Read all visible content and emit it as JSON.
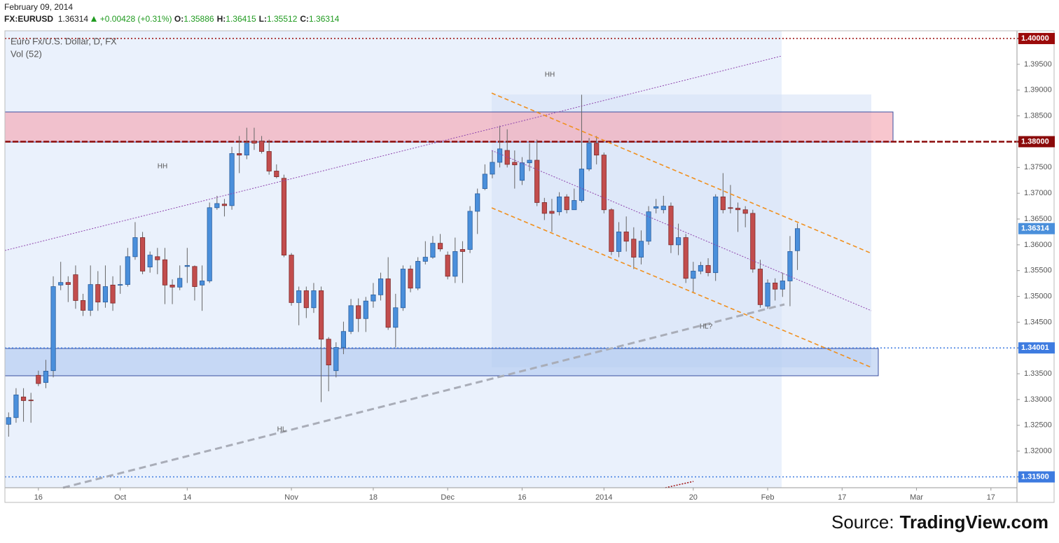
{
  "chart_data": {
    "type": "candlestick",
    "header": {
      "date": "February 09, 2014",
      "symbol": "FX:EURUSD",
      "last": "1.36314",
      "change": "+0.00428 (+0.31%)",
      "fields": [
        {
          "label": "O:",
          "value": "1.35886"
        },
        {
          "label": "H:",
          "value": "1.36415"
        },
        {
          "label": "L:",
          "value": "1.35512"
        },
        {
          "label": "C:",
          "value": "1.36314"
        }
      ]
    },
    "title": "Euro Fx/U.S. Dollar, D, FX",
    "subtitle": "Vol (52)",
    "annotations": [
      "HH",
      "HH",
      "HL",
      "HL?"
    ],
    "source_prefix": "Source:",
    "source": "TradingView.com",
    "up_color": "#4a8fdb",
    "down_color": "#c24d4d",
    "ylim": [
      1.3129,
      1.4015
    ],
    "yticks": [
      {
        "value": 1.32,
        "label": "1.32000"
      },
      {
        "value": 1.325,
        "label": "1.32500"
      },
      {
        "value": 1.33,
        "label": "1.33000"
      },
      {
        "value": 1.335,
        "label": "1.33500"
      },
      {
        "value": 1.345,
        "label": "1.34500"
      },
      {
        "value": 1.35,
        "label": "1.35000"
      },
      {
        "value": 1.355,
        "label": "1.35500"
      },
      {
        "value": 1.36,
        "label": "1.36000"
      },
      {
        "value": 1.365,
        "label": "1.36500"
      },
      {
        "value": 1.37,
        "label": "1.37000"
      },
      {
        "value": 1.375,
        "label": "1.37500"
      },
      {
        "value": 1.385,
        "label": "1.38500"
      },
      {
        "value": 1.39,
        "label": "1.39000"
      },
      {
        "value": 1.395,
        "label": "1.39500"
      }
    ],
    "levels": [
      {
        "value": 1.4,
        "label": "1.40000",
        "color": "#9b0a0a",
        "style": "dotted"
      },
      {
        "value": 1.38,
        "label": "1.38000",
        "color": "#8b0a0a",
        "style": "dashed"
      },
      {
        "value": 1.34001,
        "label": "1.34001",
        "color": "#3d7be0",
        "style": "dotted"
      },
      {
        "value": 1.315,
        "label": "1.31500",
        "color": "#3d7be0",
        "style": "dotted"
      }
    ],
    "price_label": {
      "value": 1.36314,
      "label": "1.36314",
      "color": "#4a8fdb"
    },
    "categories": [
      null,
      null,
      null,
      null,
      "16",
      null,
      null,
      null,
      null,
      null,
      null,
      null,
      null,
      null,
      null,
      "Oct",
      null,
      null,
      null,
      null,
      null,
      null,
      null,
      null,
      "14",
      null,
      null,
      null,
      null,
      null,
      null,
      null,
      null,
      null,
      null,
      null,
      null,
      null,
      "Nov",
      null,
      null,
      null,
      null,
      null,
      null,
      null,
      null,
      null,
      null,
      "18",
      null,
      null,
      null,
      null,
      null,
      null,
      null,
      null,
      null,
      "Dec",
      null,
      null,
      null,
      null,
      null,
      null,
      null,
      null,
      null,
      "16",
      null,
      null,
      null,
      null,
      null,
      null,
      null,
      null,
      null,
      null,
      "2014",
      null,
      null,
      null,
      null,
      null,
      null,
      null,
      null,
      null,
      null,
      null,
      "20",
      null,
      null,
      null,
      null,
      null,
      null,
      null,
      null,
      null,
      "Feb",
      null,
      null,
      null,
      null,
      null,
      null,
      null,
      null,
      null,
      "17",
      null,
      null,
      null,
      null,
      null,
      null,
      null,
      null,
      null,
      "Mar",
      null,
      null,
      null,
      null,
      null,
      null,
      null,
      null,
      null,
      "17",
      null,
      null,
      null
    ],
    "open": [
      1.3252,
      1.3265,
      1.3305,
      1.3299,
      1.3347,
      1.3333,
      1.3356,
      1.3522,
      1.3527,
      1.3542,
      1.3492,
      1.3473,
      1.3523,
      1.3489,
      1.3522,
      1.3522,
      1.3523,
      1.3577,
      1.3614,
      1.3557,
      1.3577,
      1.3571,
      1.3522,
      1.3518,
      1.3558,
      1.3558,
      1.3522,
      1.353,
      1.3672,
      1.3679,
      1.3676,
      1.3777,
      1.3774,
      1.3801,
      1.3801,
      1.3781,
      1.3743,
      1.3729,
      1.358,
      1.3488,
      1.3511,
      1.3478,
      1.3511,
      1.3417,
      1.3356,
      1.3401,
      1.3432,
      1.3482,
      1.3457,
      1.3491,
      1.3503,
      1.3534,
      1.344,
      1.3478,
      1.3553,
      1.3516,
      1.3568,
      1.3576,
      1.3603,
      1.358,
      1.3539,
      1.3591,
      1.3591,
      1.3665,
      1.3709,
      1.3737,
      1.376,
      1.3783,
      1.376,
      1.3725,
      1.3759,
      1.3764,
      1.3682,
      1.3665,
      1.3664,
      1.3693,
      1.3668,
      1.3686,
      1.3747,
      1.3797,
      1.3774,
      1.3668,
      1.3587,
      1.3625,
      1.3611,
      1.3576,
      1.3607,
      1.3671,
      1.3668,
      1.3675,
      1.36,
      1.3614,
      1.3535,
      1.3549,
      1.356,
      1.3546,
      1.3693,
      1.3672,
      1.3671,
      1.3668,
      1.3661,
      1.3553,
      1.3481,
      1.3526,
      1.3514,
      1.353,
      1.35886,
      null,
      null,
      null,
      null,
      null,
      null,
      null,
      null,
      null,
      null,
      null,
      null,
      null,
      null,
      null,
      null,
      null,
      null,
      null,
      null,
      null,
      null,
      null,
      null,
      null,
      null,
      null,
      null,
      null
    ],
    "high": [
      1.3275,
      1.3322,
      1.3322,
      1.3313,
      1.3356,
      1.3377,
      1.3539,
      1.3567,
      1.3539,
      1.356,
      1.3505,
      1.356,
      1.3549,
      1.356,
      1.3539,
      1.356,
      1.3594,
      1.3644,
      1.3625,
      1.3587,
      1.3594,
      1.3594,
      1.3533,
      1.356,
      1.3594,
      1.356,
      1.356,
      1.3682,
      1.3695,
      1.3689,
      1.379,
      1.3811,
      1.3827,
      1.3827,
      1.3811,
      1.3804,
      1.3756,
      1.3736,
      1.3584,
      1.3519,
      1.3519,
      1.3526,
      1.3519,
      1.3421,
      1.3411,
      1.3451,
      1.3495,
      1.3496,
      1.3499,
      1.3526,
      1.3546,
      1.3576,
      1.3505,
      1.356,
      1.356,
      1.3576,
      1.3607,
      1.3617,
      1.3621,
      1.3587,
      1.3614,
      1.3607,
      1.3675,
      1.3709,
      1.3756,
      1.3783,
      1.3831,
      1.3824,
      1.3783,
      1.377,
      1.3797,
      1.3804,
      1.3691,
      1.3689,
      1.3702,
      1.3698,
      1.3709,
      1.3891,
      1.3807,
      1.3811,
      1.3779,
      1.3671,
      1.3644,
      1.3655,
      1.3634,
      1.3628,
      1.3675,
      1.3689,
      1.3695,
      1.3682,
      1.3641,
      1.3621,
      1.3567,
      1.3567,
      1.3574,
      1.3698,
      1.3739,
      1.3716,
      1.3682,
      1.3675,
      1.3668,
      1.3571,
      1.3533,
      1.3535,
      1.3546,
      1.3617,
      1.36415,
      null,
      null,
      null,
      null,
      null,
      null,
      null,
      null,
      null,
      null,
      null,
      null,
      null,
      null,
      null,
      null,
      null,
      null,
      null,
      null,
      null,
      null,
      null,
      null,
      null,
      null,
      null,
      null,
      null
    ],
    "low": [
      1.3228,
      1.3255,
      1.3257,
      1.3255,
      1.3326,
      1.3322,
      1.3343,
      1.3512,
      1.3489,
      1.3476,
      1.3462,
      1.3462,
      1.3472,
      1.3478,
      1.3472,
      1.3505,
      1.3519,
      1.3571,
      1.3543,
      1.3546,
      1.3543,
      1.3485,
      1.3485,
      1.3512,
      1.3526,
      1.3492,
      1.3472,
      1.3526,
      1.3668,
      1.3655,
      1.3668,
      1.3739,
      1.3766,
      1.3784,
      1.3777,
      1.3736,
      1.3729,
      1.3576,
      1.3482,
      1.3444,
      1.3458,
      1.3468,
      1.3295,
      1.3316,
      1.3343,
      1.3388,
      1.3427,
      1.3431,
      1.3431,
      1.3478,
      1.3492,
      1.3435,
      1.3401,
      1.3472,
      1.3508,
      1.3512,
      1.3562,
      1.3573,
      1.3587,
      1.3533,
      1.3526,
      1.3526,
      1.3584,
      1.3621,
      1.3706,
      1.3729,
      1.375,
      1.375,
      1.3709,
      1.3716,
      1.3743,
      1.3675,
      1.3648,
      1.3625,
      1.3657,
      1.3661,
      1.3668,
      1.3682,
      1.3743,
      1.3756,
      1.3661,
      1.358,
      1.3576,
      1.3587,
      1.3553,
      1.3562,
      1.36,
      1.3661,
      1.3661,
      1.3584,
      1.358,
      1.3526,
      1.3508,
      1.3543,
      1.3539,
      1.353,
      1.3661,
      1.3661,
      1.3625,
      1.3634,
      1.3546,
      1.3478,
      1.3476,
      1.3492,
      1.3499,
      1.3481,
      1.35512,
      null,
      null,
      null,
      null,
      null,
      null,
      null,
      null,
      null,
      null,
      null,
      null,
      null,
      null,
      null,
      null,
      null,
      null,
      null,
      null,
      null,
      null,
      null,
      null,
      null,
      null,
      null,
      null,
      null
    ],
    "close": [
      1.3265,
      1.3309,
      1.3298,
      1.3298,
      1.3331,
      1.3355,
      1.3519,
      1.3527,
      1.3523,
      1.3492,
      1.3473,
      1.3523,
      1.3489,
      1.3519,
      1.3487,
      1.3523,
      1.3577,
      1.3614,
      1.3549,
      1.358,
      1.3571,
      1.3522,
      1.3518,
      1.3535,
      1.356,
      1.3519,
      1.353,
      1.3672,
      1.368,
      1.3676,
      1.3777,
      1.3774,
      1.3797,
      1.3797,
      1.3781,
      1.3743,
      1.3732,
      1.358,
      1.3488,
      1.3511,
      1.3478,
      1.3511,
      1.3417,
      1.3367,
      1.3401,
      1.3432,
      1.3482,
      1.3457,
      1.3491,
      1.3503,
      1.3534,
      1.344,
      1.3478,
      1.3553,
      1.3516,
      1.3568,
      1.3576,
      1.3603,
      1.3592,
      1.3539,
      1.3587,
      1.3587,
      1.3665,
      1.3699,
      1.3737,
      1.376,
      1.3786,
      1.3756,
      1.3755,
      1.3759,
      1.3764,
      1.3682,
      1.3661,
      1.3661,
      1.3693,
      1.3668,
      1.3686,
      1.3747,
      1.3797,
      1.3774,
      1.3668,
      1.3587,
      1.3625,
      1.3607,
      1.3576,
      1.3607,
      1.3664,
      1.3674,
      1.3675,
      1.36,
      1.3614,
      1.3535,
      1.3549,
      1.356,
      1.3546,
      1.3693,
      1.3668,
      1.3671,
      1.3668,
      1.3661,
      1.3553,
      1.3484,
      1.3526,
      1.3514,
      1.353,
      1.3587,
      1.36314,
      null,
      null,
      null,
      null,
      null,
      null,
      null,
      null,
      null,
      null,
      null,
      null,
      null,
      null,
      null,
      null,
      null,
      null,
      null,
      null,
      null,
      null,
      null,
      null,
      null,
      null,
      null,
      null,
      null
    ]
  }
}
